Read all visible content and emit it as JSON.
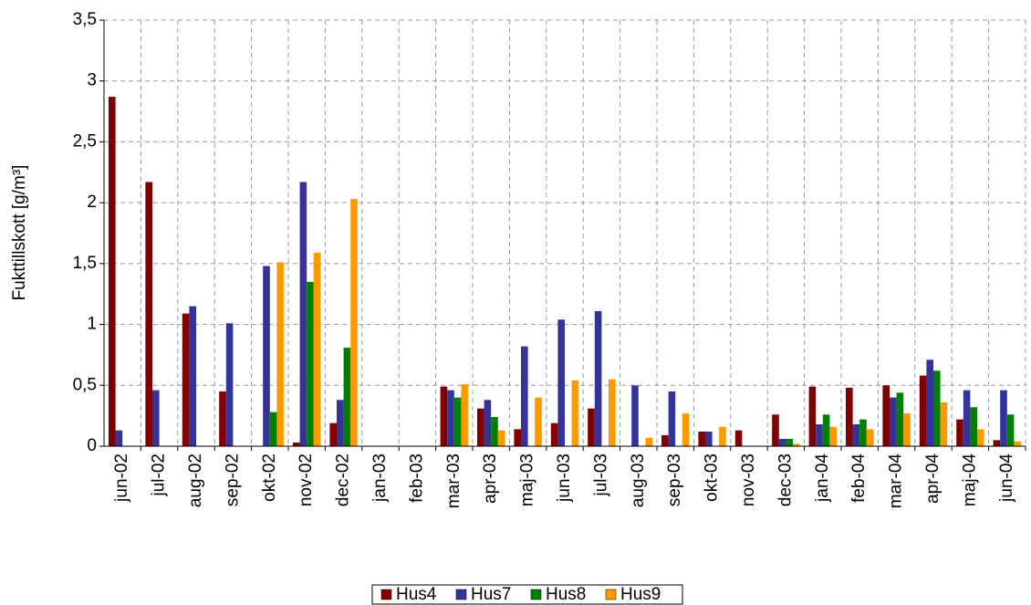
{
  "chart_data": {
    "type": "bar",
    "y_label": "Fukttillskott [g/m³]",
    "categories": [
      "jun-02",
      "jul-02",
      "aug-02",
      "sep-02",
      "okt-02",
      "nov-02",
      "dec-02",
      "jan-03",
      "feb-03",
      "mar-03",
      "apr-03",
      "maj-03",
      "jun-03",
      "jul-03",
      "aug-03",
      "sep-03",
      "okt-03",
      "nov-03",
      "dec-03",
      "jan-04",
      "feb-04",
      "mar-04",
      "apr-04",
      "maj-04",
      "jun-04"
    ],
    "series": [
      {
        "name": "Hus4",
        "color": "#800000",
        "values": [
          2.87,
          2.17,
          1.09,
          0.45,
          null,
          0.03,
          0.19,
          null,
          null,
          0.49,
          0.31,
          0.14,
          0.19,
          0.31,
          null,
          0.09,
          0.12,
          0.13,
          0.26,
          0.49,
          0.48,
          0.5,
          0.58,
          0.22,
          0.05
        ]
      },
      {
        "name": "Hus7",
        "color": "#333399",
        "values": [
          0.13,
          0.46,
          1.15,
          1.01,
          1.48,
          2.17,
          0.38,
          null,
          null,
          0.46,
          0.38,
          0.82,
          1.04,
          1.11,
          0.5,
          0.45,
          0.12,
          null,
          0.06,
          0.18,
          0.18,
          0.4,
          0.71,
          0.46,
          0.46
        ]
      },
      {
        "name": "Hus8",
        "color": "#008000",
        "values": [
          null,
          null,
          null,
          null,
          0.28,
          1.35,
          0.81,
          null,
          null,
          0.4,
          0.24,
          null,
          null,
          null,
          null,
          null,
          null,
          null,
          0.06,
          0.26,
          0.22,
          0.44,
          0.62,
          0.32,
          0.26
        ]
      },
      {
        "name": "Hus9",
        "color": "#FF9900",
        "values": [
          null,
          null,
          null,
          null,
          1.51,
          1.59,
          2.03,
          null,
          null,
          0.51,
          0.13,
          0.4,
          0.54,
          0.55,
          0.07,
          0.27,
          0.16,
          null,
          0.02,
          0.16,
          0.14,
          0.27,
          0.36,
          0.14,
          0.04
        ]
      }
    ],
    "ylim": [
      0,
      3.5
    ],
    "yticks": [
      0,
      {
        "value": 0.5,
        "label": "0,5"
      },
      1,
      {
        "value": 1.5,
        "label": "1,5"
      },
      2,
      {
        "value": 2.5,
        "label": "2,5"
      },
      3,
      {
        "value": 3.5,
        "label": "3,5"
      }
    ],
    "grid": true
  }
}
